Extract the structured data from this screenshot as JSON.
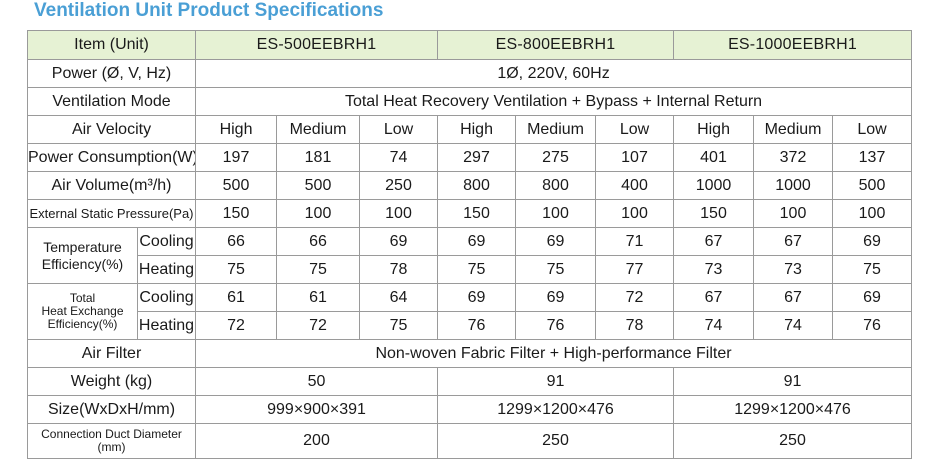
{
  "title": "Ventilation Unit Product Specifications",
  "header": {
    "item_label": "Item (Unit)",
    "models": [
      "ES-500EEBRH1",
      "ES-800EEBRH1",
      "ES-1000EEBRH1"
    ]
  },
  "power": {
    "label": "Power (Ø, V, Hz)",
    "value": "1Ø, 220V, 60Hz"
  },
  "mode": {
    "label": "Ventilation Mode",
    "value": "Total Heat Recovery Ventilation + Bypass + Internal Return"
  },
  "air_velocity": {
    "label": "Air Velocity",
    "values": [
      "High",
      "Medium",
      "Low",
      "High",
      "Medium",
      "Low",
      "High",
      "Medium",
      "Low"
    ]
  },
  "power_consumption": {
    "label": "Power Consumption(W)",
    "values": [
      "197",
      "181",
      "74",
      "297",
      "275",
      "107",
      "401",
      "372",
      "137"
    ]
  },
  "air_volume": {
    "label": "Air Volume(m³/h)",
    "values": [
      "500",
      "500",
      "250",
      "800",
      "800",
      "400",
      "1000",
      "1000",
      "500"
    ]
  },
  "static_pressure": {
    "label": "External Static Pressure(Pa)",
    "values": [
      "150",
      "100",
      "100",
      "150",
      "100",
      "100",
      "150",
      "100",
      "100"
    ]
  },
  "temp_eff": {
    "label_line1": "Temperature",
    "label_line2": "Efficiency(%)",
    "cooling_label": "Cooling",
    "heating_label": "Heating",
    "cooling": [
      "66",
      "66",
      "69",
      "69",
      "69",
      "71",
      "67",
      "67",
      "69"
    ],
    "heating": [
      "75",
      "75",
      "78",
      "75",
      "75",
      "77",
      "73",
      "73",
      "75"
    ]
  },
  "heat_eff": {
    "label_line1": "Total",
    "label_line2": "Heat Exchange",
    "label_line3": "Efficiency(%)",
    "cooling_label": "Cooling",
    "heating_label": "Heating",
    "cooling": [
      "61",
      "61",
      "64",
      "69",
      "69",
      "72",
      "67",
      "67",
      "69"
    ],
    "heating": [
      "72",
      "72",
      "75",
      "76",
      "76",
      "78",
      "74",
      "74",
      "76"
    ]
  },
  "air_filter": {
    "label": "Air Filter",
    "value": "Non-woven Fabric Filter + High-performance Filter"
  },
  "weight": {
    "label": "Weight (kg)",
    "values": [
      "50",
      "91",
      "91"
    ]
  },
  "size": {
    "label": "Size(WxDxH/mm)",
    "values": [
      "999×900×391",
      "1299×1200×476",
      "1299×1200×476"
    ]
  },
  "duct": {
    "label_line1": "Connection Duct Diameter",
    "label_line2": "(mm)",
    "values": [
      "200",
      "250",
      "250"
    ]
  }
}
